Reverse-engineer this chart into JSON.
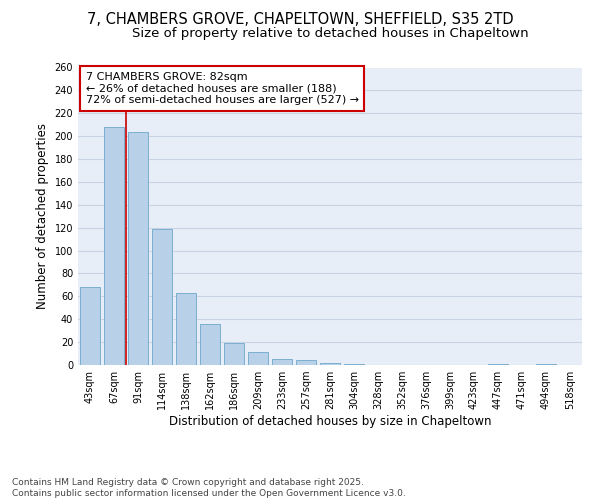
{
  "title_line1": "7, CHAMBERS GROVE, CHAPELTOWN, SHEFFIELD, S35 2TD",
  "title_line2": "Size of property relative to detached houses in Chapeltown",
  "xlabel": "Distribution of detached houses by size in Chapeltown",
  "ylabel": "Number of detached properties",
  "categories": [
    "43sqm",
    "67sqm",
    "91sqm",
    "114sqm",
    "138sqm",
    "162sqm",
    "186sqm",
    "209sqm",
    "233sqm",
    "257sqm",
    "281sqm",
    "304sqm",
    "328sqm",
    "352sqm",
    "376sqm",
    "399sqm",
    "423sqm",
    "447sqm",
    "471sqm",
    "494sqm",
    "518sqm"
  ],
  "values": [
    68,
    208,
    204,
    119,
    63,
    36,
    19,
    11,
    5,
    4,
    2,
    1,
    0,
    0,
    0,
    0,
    0,
    1,
    0,
    1,
    0
  ],
  "bar_color": "#b8d0e8",
  "bar_edge_color": "#7aaed0",
  "grid_color": "#c8d4e4",
  "background_color": "#e8eef8",
  "vline_color": "#cc0000",
  "annotation_text": "7 CHAMBERS GROVE: 82sqm\n← 26% of detached houses are smaller (188)\n72% of semi-detached houses are larger (527) →",
  "annotation_box_color": "#cc0000",
  "ylim": [
    0,
    260
  ],
  "yticks": [
    0,
    20,
    40,
    60,
    80,
    100,
    120,
    140,
    160,
    180,
    200,
    220,
    240,
    260
  ],
  "footer": "Contains HM Land Registry data © Crown copyright and database right 2025.\nContains public sector information licensed under the Open Government Licence v3.0.",
  "title_fontsize": 10.5,
  "subtitle_fontsize": 9.5,
  "axis_label_fontsize": 8.5,
  "tick_fontsize": 7,
  "annotation_fontsize": 8,
  "footer_fontsize": 6.5
}
